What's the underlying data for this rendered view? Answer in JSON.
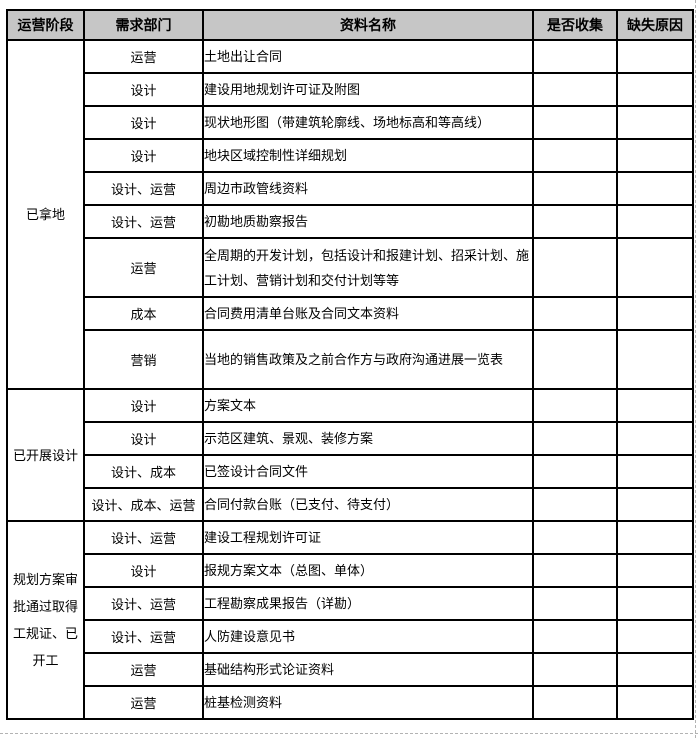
{
  "colors": {
    "header_bg": "#c6c6c6",
    "border": "#000000",
    "text": "#000000",
    "page_break_line": "#b3b3b3"
  },
  "table": {
    "headers": [
      {
        "key": "stage",
        "label": "运营阶段"
      },
      {
        "key": "dept",
        "label": "需求部门"
      },
      {
        "key": "name",
        "label": "资料名称"
      },
      {
        "key": "collected",
        "label": "是否收集"
      },
      {
        "key": "reason",
        "label": "缺失原因"
      }
    ],
    "groups": [
      {
        "stage": "已拿地",
        "rows": [
          {
            "dept": "运营",
            "name": "土地出让合同",
            "collected": "",
            "reason": "",
            "tall": false
          },
          {
            "dept": "设计",
            "name": "建设用地规划许可证及附图",
            "collected": "",
            "reason": "",
            "tall": false
          },
          {
            "dept": "设计",
            "name": "现状地形图（带建筑轮廓线、场地标高和等高线）",
            "collected": "",
            "reason": "",
            "tall": false
          },
          {
            "dept": "设计",
            "name": "地块区域控制性详细规划",
            "collected": "",
            "reason": "",
            "tall": false
          },
          {
            "dept": "设计、运营",
            "name": "周边市政管线资料",
            "collected": "",
            "reason": "",
            "tall": false
          },
          {
            "dept": "设计、运营",
            "name": "初勘地质勘察报告",
            "collected": "",
            "reason": "",
            "tall": false
          },
          {
            "dept": "运营",
            "name": "全周期的开发计划，包括设计和报建计划、招采计划、施工计划、营销计划和交付计划等等",
            "collected": "",
            "reason": "",
            "tall": true
          },
          {
            "dept": "成本",
            "name": "合同费用清单台账及合同文本资料",
            "collected": "",
            "reason": "",
            "tall": false
          },
          {
            "dept": "营销",
            "name": "当地的销售政策及之前合作方与政府沟通进展一览表",
            "collected": "",
            "reason": "",
            "tall": true
          }
        ]
      },
      {
        "stage": "已开展设计",
        "rows": [
          {
            "dept": "设计",
            "name": "方案文本",
            "collected": "",
            "reason": "",
            "tall": false
          },
          {
            "dept": "设计",
            "name": "示范区建筑、景观、装修方案",
            "collected": "",
            "reason": "",
            "tall": false
          },
          {
            "dept": "设计、成本",
            "name": "已签设计合同文件",
            "collected": "",
            "reason": "",
            "tall": false
          },
          {
            "dept": "设计、成本、运营",
            "name": "合同付款台账（已支付、待支付）",
            "collected": "",
            "reason": "",
            "tall": false
          }
        ]
      },
      {
        "stage": "规划方案审批通过取得工规证、已开工",
        "rows": [
          {
            "dept": "设计、运营",
            "name": "建设工程规划许可证",
            "collected": "",
            "reason": "",
            "tall": false
          },
          {
            "dept": "设计",
            "name": "报规方案文本（总图、单体）",
            "collected": "",
            "reason": "",
            "tall": false
          },
          {
            "dept": "设计、运营",
            "name": "工程勘察成果报告（详勘）",
            "collected": "",
            "reason": "",
            "tall": false
          },
          {
            "dept": "设计、运营",
            "name": "人防建设意见书",
            "collected": "",
            "reason": "",
            "tall": false
          },
          {
            "dept": "运营",
            "name": "基础结构形式论证资料",
            "collected": "",
            "reason": "",
            "tall": false
          },
          {
            "dept": "运营",
            "name": "桩基检测资料",
            "collected": "",
            "reason": "",
            "tall": false
          }
        ]
      }
    ]
  }
}
